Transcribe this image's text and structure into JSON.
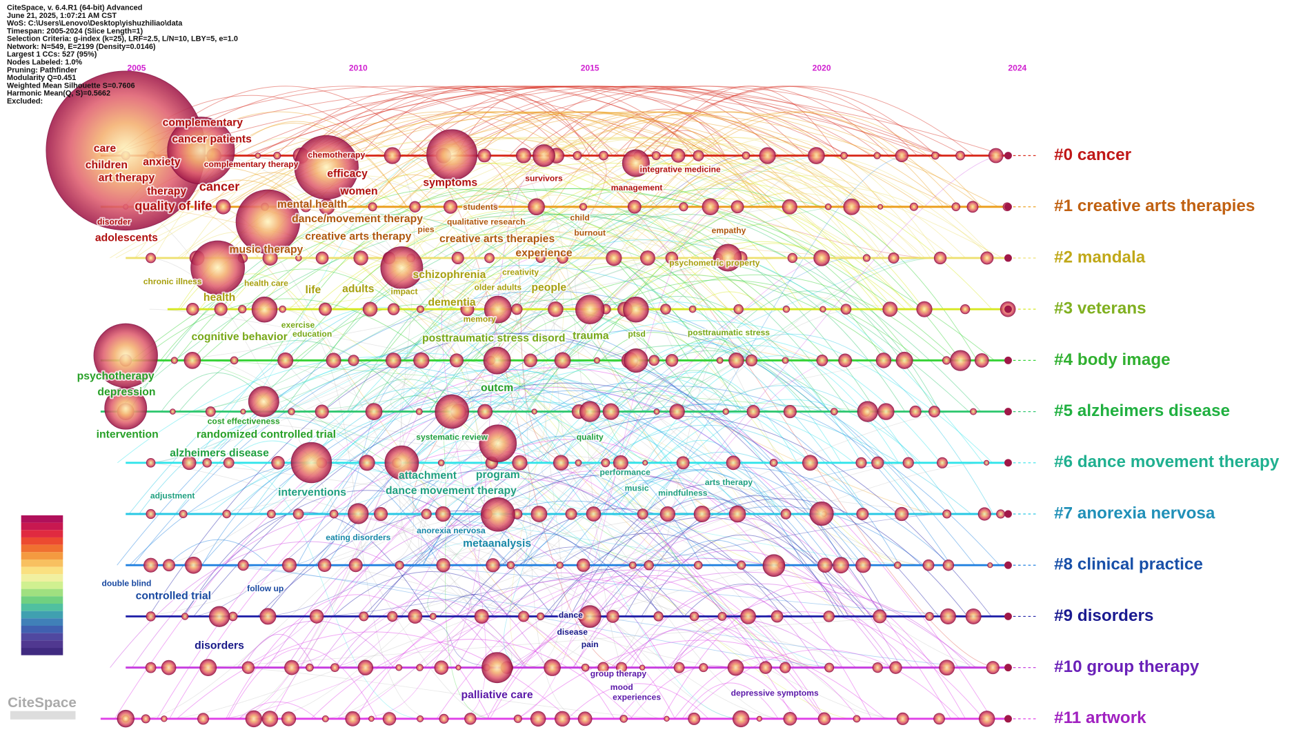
{
  "info": [
    "CiteSpace, v. 6.4.R1 (64-bit) Advanced",
    "June 21, 2025, 1:07:21 AM CST",
    "WoS: C:\\Users\\Lenovo\\Desktop\\yishuzhiliao\\data",
    "Timespan: 2005-2024 (Slice Length=1)",
    "Selection Criteria: g-index (k=25), LRF=2.5, L/N=10, LBY=5, e=1.0",
    "Network: N=549, E=2199 (Density=0.0146)",
    "Largest 1 CCs: 527 (95%)",
    "Nodes Labeled: 1.0%",
    "Pruning: Pathfinder",
    "Modularity Q=0.451",
    "Weighted Mean Silhouette S=0.7606",
    "Harmonic Mean(Q, S)=0.5662",
    "Excluded:"
  ],
  "years": [
    "2005",
    "2010",
    "2015",
    "2020",
    "2024"
  ],
  "clusters": [
    {
      "label": "#0 cancer",
      "keywords": [
        "complementary",
        "cancer patients",
        "care",
        "anxiety",
        "children",
        "art therapy",
        "complementary therapy",
        "chemotherapy",
        "efficacy",
        "therapy",
        "cancer",
        "women",
        "symptoms",
        "survivors",
        "integrative medicine",
        "management",
        "quality of life",
        "disorder",
        "adolescents"
      ]
    },
    {
      "label": "#1 creative arts therapies",
      "keywords": [
        "mental health",
        "dance/movement therapy",
        "students",
        "qualitative research",
        "child",
        "burnout",
        "pies",
        "creative arts therapy",
        "creative arts therapies",
        "experience",
        "empathy",
        "music therapy"
      ]
    },
    {
      "label": "#2 mandala",
      "keywords": [
        "psychometric property",
        "chronic illness",
        "health care",
        "schizophrenia",
        "creativity",
        "older adults",
        "people",
        "life",
        "adults",
        "impact",
        "health",
        "dementia",
        "memory"
      ]
    },
    {
      "label": "#3 veterans",
      "keywords": [
        "exercise",
        "education",
        "cognitive behavior",
        "posttraumatic stress disord",
        "trauma",
        "ptsd",
        "posttraumatic stress"
      ]
    },
    {
      "label": "#4 body image",
      "keywords": [
        "psychotherapy",
        "depression",
        "outcm",
        "intervention",
        "cost effectiveness",
        "randomized controlled trial"
      ]
    },
    {
      "label": "#5 alzheimers disease",
      "keywords": [
        "systematic review",
        "quality",
        "alzheimers disease"
      ]
    },
    {
      "label": "#6 dance movement therapy",
      "keywords": [
        "attachment",
        "program",
        "performance",
        "arts therapy",
        "music",
        "mindfulness",
        "dance movement therapy",
        "interventions",
        "adjustment"
      ]
    },
    {
      "label": "#7 anorexia nervosa",
      "keywords": [
        "anorexia nervosa",
        "eating disorders",
        "metaanalysis"
      ]
    },
    {
      "label": "#8 clinical practice",
      "keywords": [
        "double blind",
        "follow up",
        "controlled trial"
      ]
    },
    {
      "label": "#9 disorders",
      "keywords": [
        "dance",
        "disease",
        "pain",
        "disorders"
      ]
    },
    {
      "label": "#10 group therapy",
      "keywords": [
        "group therapy",
        "mood",
        "experiences",
        "depressive symptoms",
        "palliative care"
      ]
    },
    {
      "label": "#11 artwork",
      "keywords": []
    }
  ],
  "logo": "CiteSpace"
}
